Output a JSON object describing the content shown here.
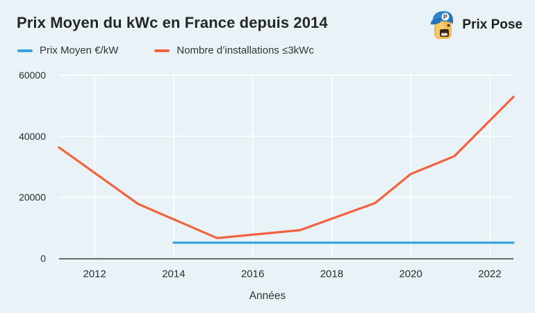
{
  "page": {
    "background_color": "#e9f3f7",
    "gridline_color": "#ffffff",
    "axis_color": "#4a4a4a"
  },
  "header": {
    "title": "Prix Moyen du kWc en France depuis 2014",
    "logo_text": "Prix Pose",
    "logo_icon": "prix-pose-mascot-icon"
  },
  "legend": [
    {
      "label": "Prix Moyen €/kW",
      "color": "#36a2db"
    },
    {
      "label": "Nombre d’installations ≤3kWc",
      "color": "#f4613c"
    }
  ],
  "chart_data": {
    "type": "line",
    "title": "Prix Moyen du kWc en France depuis 2014",
    "xlabel": "Années",
    "ylabel": "",
    "xlim": [
      2011.1,
      2022.6
    ],
    "ylim": [
      0,
      60000
    ],
    "x_ticks": [
      2012,
      2014,
      2016,
      2018,
      2020,
      2022
    ],
    "y_ticks": [
      0,
      20000,
      40000,
      60000
    ],
    "grid": true,
    "legend_position": "top-left",
    "series": [
      {
        "name": "Prix Moyen €/kW",
        "color": "#36a2db",
        "x": [
          2014,
          2022.6
        ],
        "values": [
          5100,
          5100
        ]
      },
      {
        "name": "Nombre d’installations ≤3kWc",
        "color": "#f4613c",
        "x": [
          2011.1,
          2013.1,
          2015.1,
          2017.2,
          2019.1,
          2020,
          2021.1,
          2022.6
        ],
        "values": [
          36300,
          17800,
          6600,
          9200,
          18100,
          27600,
          33400,
          52900
        ]
      }
    ]
  }
}
